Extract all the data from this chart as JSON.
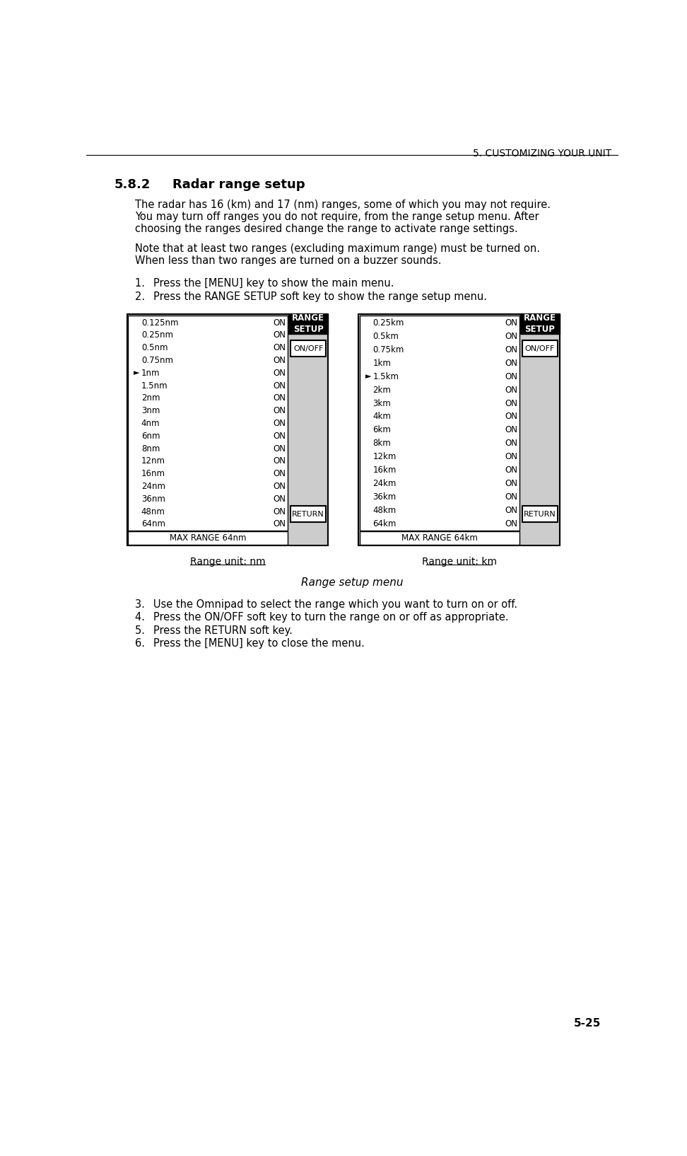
{
  "page_header": "5. CUSTOMIZING YOUR UNIT",
  "section_number": "5.8.2",
  "section_title": "Radar range setup",
  "body_paragraphs": [
    "The radar has 16 (km) and 17 (nm) ranges, some of which you may not require.\nYou may turn off ranges you do not require, from the range setup menu. After\nchoosing the ranges desired change the range to activate range settings.",
    "Note that at least two ranges (excluding maximum range) must be turned on.\nWhen less than two ranges are turned on a buzzer sounds."
  ],
  "steps_before": [
    "Press the [MENU] key to show the main menu.",
    "Press the RANGE SETUP soft key to show the range setup menu."
  ],
  "steps_after": [
    "Use the Omnipad to select the range which you want to turn on or off.",
    "Press the ON/OFF soft key to turn the range on or off as appropriate.",
    "Press the RETURN soft key.",
    "Press the [MENU] key to close the menu."
  ],
  "nm_ranges": [
    "0.125nm",
    "0.25nm",
    "0.5nm",
    "0.75nm",
    "1nm",
    "1.5nm",
    "2nm",
    "3nm",
    "4nm",
    "6nm",
    "8nm",
    "12nm",
    "16nm",
    "24nm",
    "36nm",
    "48nm",
    "64nm"
  ],
  "km_ranges": [
    "0.25km",
    "0.5km",
    "0.75km",
    "1km",
    "1.5km",
    "2km",
    "3km",
    "4km",
    "6km",
    "8km",
    "12km",
    "16km",
    "24km",
    "36km",
    "48km",
    "64km"
  ],
  "nm_arrow_index": 4,
  "km_arrow_index": 4,
  "nm_max_range": "MAX RANGE 64nm",
  "km_max_range": "MAX RANGE 64km",
  "nm_label": "Range unit: nm",
  "km_label": "Range unit: km",
  "caption": "Range setup menu",
  "page_number": "5-25",
  "bg_color": "#ffffff",
  "menu_bg_color": "#cccccc",
  "header_bg_color": "#000000",
  "header_text_color": "#ffffff",
  "button_bg_color": "#ffffff",
  "button_border_color": "#000000"
}
